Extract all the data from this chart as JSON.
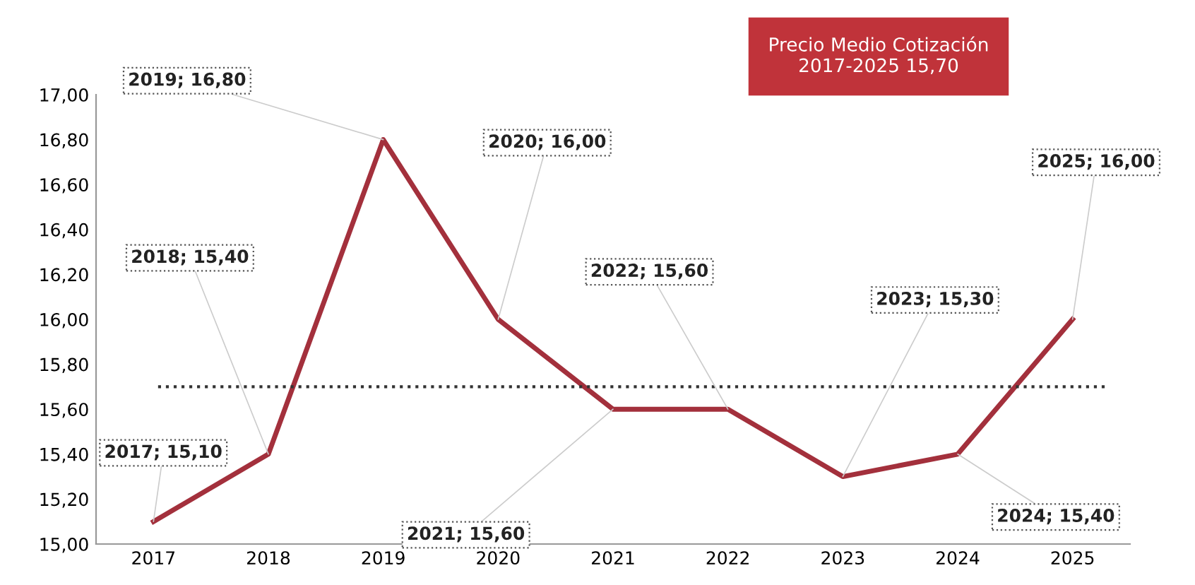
{
  "chart_data": {
    "type": "line",
    "categories": [
      "2017",
      "2018",
      "2019",
      "2020",
      "2021",
      "2022",
      "2023",
      "2024",
      "2025"
    ],
    "series": [
      {
        "color": "#a3303c",
        "values": [
          15.1,
          15.4,
          16.8,
          16.0,
          15.6,
          15.6,
          15.3,
          15.4,
          16.0
        ],
        "value_labels": [
          "2017; 15,10",
          "2018; 15,40",
          "2019; 16,80",
          "2020; 16,00",
          "2021; 15,60",
          "2022; 15,60",
          "2023; 15,30",
          "2024; 15,40",
          "2025; 16,00"
        ]
      }
    ],
    "ylim": [
      15.0,
      17.0
    ],
    "yticks": [
      {
        "value": 15.0,
        "label": "15,00"
      },
      {
        "value": 15.2,
        "label": "15,20"
      },
      {
        "value": 15.4,
        "label": "15,40"
      },
      {
        "value": 15.6,
        "label": "15,60"
      },
      {
        "value": 15.8,
        "label": "15,80"
      },
      {
        "value": 16.0,
        "label": "16,00"
      },
      {
        "value": 16.2,
        "label": "16,20"
      },
      {
        "value": 16.4,
        "label": "16,40"
      },
      {
        "value": 16.6,
        "label": "16,60"
      },
      {
        "value": 16.8,
        "label": "16,80"
      },
      {
        "value": 17.0,
        "label": "17,00"
      }
    ],
    "ref_lines": [
      {
        "axis": "y",
        "value": 15.7,
        "color": "#333333",
        "line_style": "dotted"
      }
    ],
    "annotations": [
      "Precio Medio Cotización\n2017-2025 15,70"
    ],
    "grid": false,
    "legend": false,
    "marker": "none",
    "line_style": "solid"
  }
}
